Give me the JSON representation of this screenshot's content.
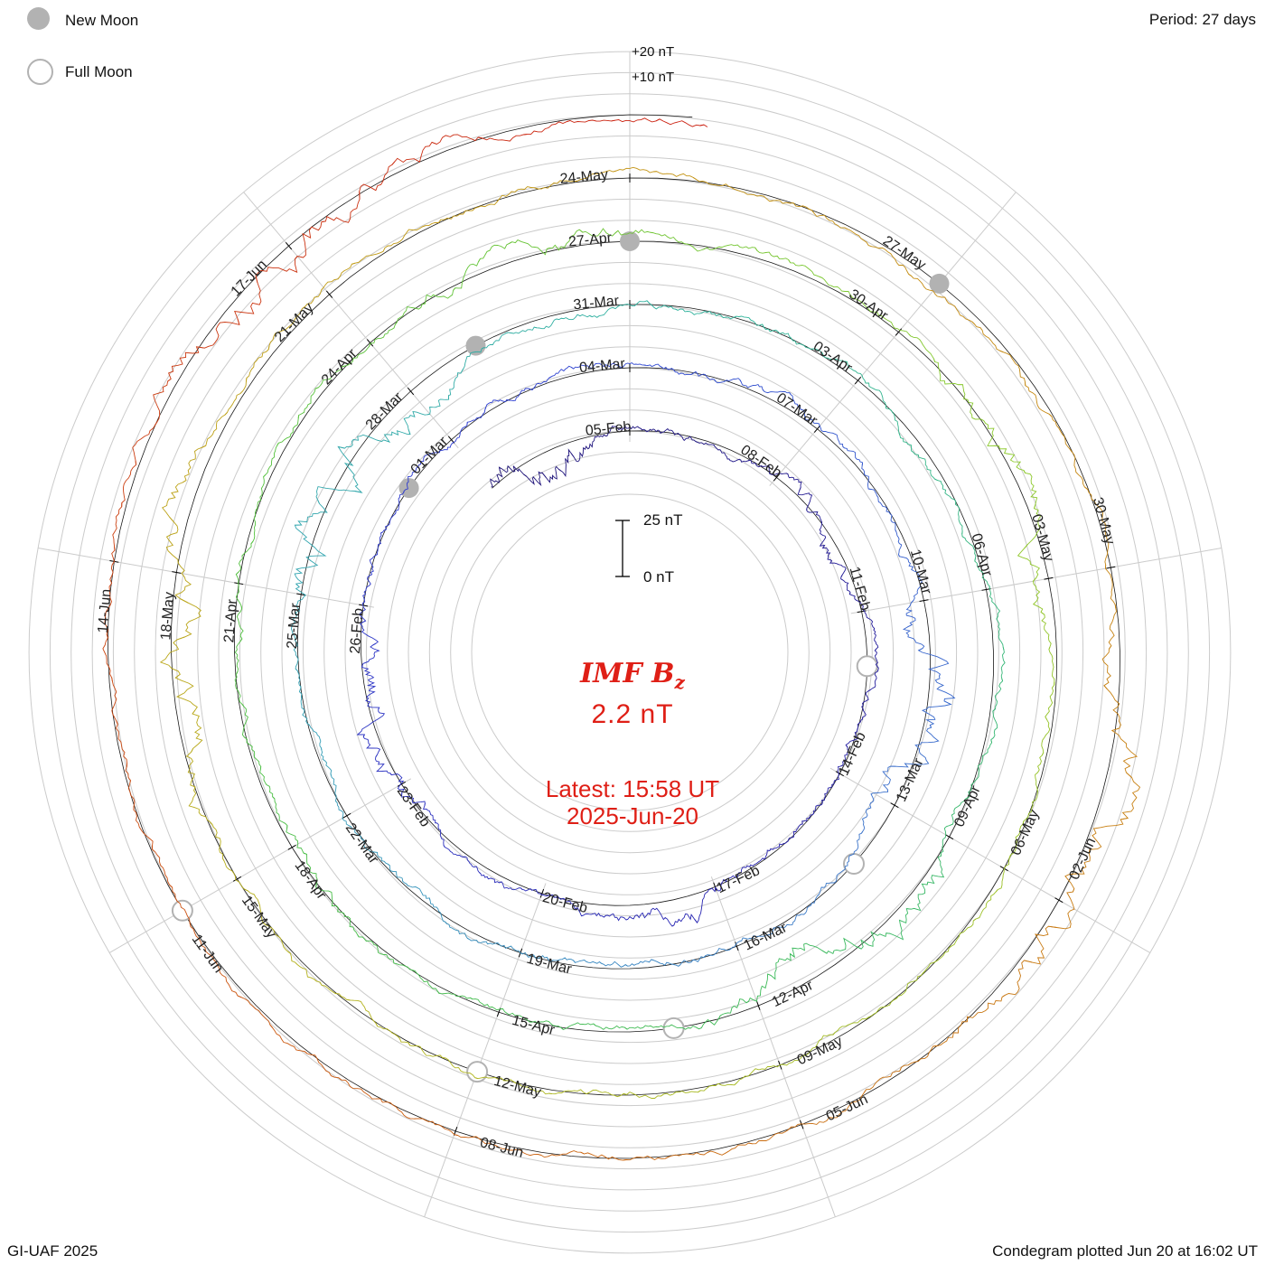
{
  "legend": {
    "new_moon_label": "New Moon",
    "full_moon_label": "Full Moon",
    "moon_color": "#b2b2b2"
  },
  "header": {
    "period_label": "Period: 27 days"
  },
  "footer": {
    "credit": "GI-UAF 2025",
    "plotted_label": "Condegram plotted Jun 20 at 16:02 UT"
  },
  "center": {
    "title": "IMF B",
    "title_sub": "z",
    "value": "2.2 nT",
    "latest_time": "Latest: 15:58 UT",
    "latest_date": "2025-Jun-20",
    "color": "#df1f16"
  },
  "scale": {
    "max_label": "25 nT",
    "zero_label": "0 nT",
    "plus20_label": "+20 nT",
    "plus10_label": "+10 nT"
  },
  "chart_data": {
    "type": "spiral",
    "variant": "condegram",
    "title": "IMF Bz",
    "units": "nT",
    "latest_value_nT": 2.2,
    "latest_timestamp": "2025-Jun-20 15:58 UT",
    "plotted_timestamp": "Jun 20 at 16:02 UT",
    "period_days": 27,
    "tick_step_days": 3,
    "start_date": "02-Feb",
    "end_date": "20-Jun",
    "amplitude_scale_label": "25 nT / 0 nT reference bar",
    "gridline_labels": [
      "+20 nT",
      "+10 nT"
    ],
    "tick_labels": [
      "05-Feb",
      "08-Feb",
      "11-Feb",
      "14-Feb",
      "17-Feb",
      "20-Feb",
      "23-Feb",
      "26-Feb",
      "01-Mar",
      "04-Mar",
      "07-Mar",
      "10-Mar",
      "13-Mar",
      "16-Mar",
      "19-Mar",
      "22-Mar",
      "25-Mar",
      "28-Mar",
      "31-Mar",
      "03-Apr",
      "06-Apr",
      "09-Apr",
      "12-Apr",
      "15-Apr",
      "18-Apr",
      "21-Apr",
      "24-Apr",
      "27-Apr",
      "30-Apr",
      "03-May",
      "06-May",
      "09-May",
      "12-May",
      "15-May",
      "18-May",
      "21-May",
      "24-May",
      "27-May",
      "30-May",
      "02-Jun",
      "05-Jun",
      "08-Jun",
      "11-Jun",
      "14-Jun",
      "17-Jun"
    ],
    "rings": [
      {
        "index": 1,
        "span": "02-Feb to 04-Mar",
        "colors": [
          "#1d1175",
          "#2e3ed2"
        ]
      },
      {
        "index": 2,
        "span": "04-Mar to 31-Mar",
        "colors": [
          "#2e3ed2",
          "#2fb39b"
        ]
      },
      {
        "index": 3,
        "span": "31-Mar to 27-Apr",
        "colors": [
          "#2fb39b",
          "#8cc92c"
        ]
      },
      {
        "index": 4,
        "span": "27-Apr to 24-May",
        "colors": [
          "#8cc92c",
          "#c29712"
        ]
      },
      {
        "index": 5,
        "span": "24-May to 20-Jun",
        "colors": [
          "#c29712",
          "#cb1f10"
        ]
      }
    ],
    "colormap": [
      [
        0.0,
        "#1d1175"
      ],
      [
        0.1,
        "#2722ad"
      ],
      [
        0.2,
        "#2e3ed2"
      ],
      [
        0.28,
        "#3a6fcb"
      ],
      [
        0.36,
        "#35a3b5"
      ],
      [
        0.42,
        "#2fb39b"
      ],
      [
        0.5,
        "#3cba55"
      ],
      [
        0.58,
        "#58c23a"
      ],
      [
        0.64,
        "#8cc92c"
      ],
      [
        0.72,
        "#b2b31c"
      ],
      [
        0.79,
        "#c29712"
      ],
      [
        0.86,
        "#c87f12"
      ],
      [
        0.92,
        "#cc5a11"
      ],
      [
        1.0,
        "#cb1f10"
      ]
    ],
    "moons": {
      "new": [
        "28-Feb",
        "29-Mar",
        "27-Apr",
        "27-May"
      ],
      "full": [
        "12-Feb",
        "14-Mar",
        "13-Apr",
        "12-May",
        "11-Jun"
      ]
    },
    "style": {
      "grid": "#cbcbcb",
      "baseline": "#000000",
      "tick_label": "#222222",
      "moon": "#b2b2b2"
    }
  }
}
